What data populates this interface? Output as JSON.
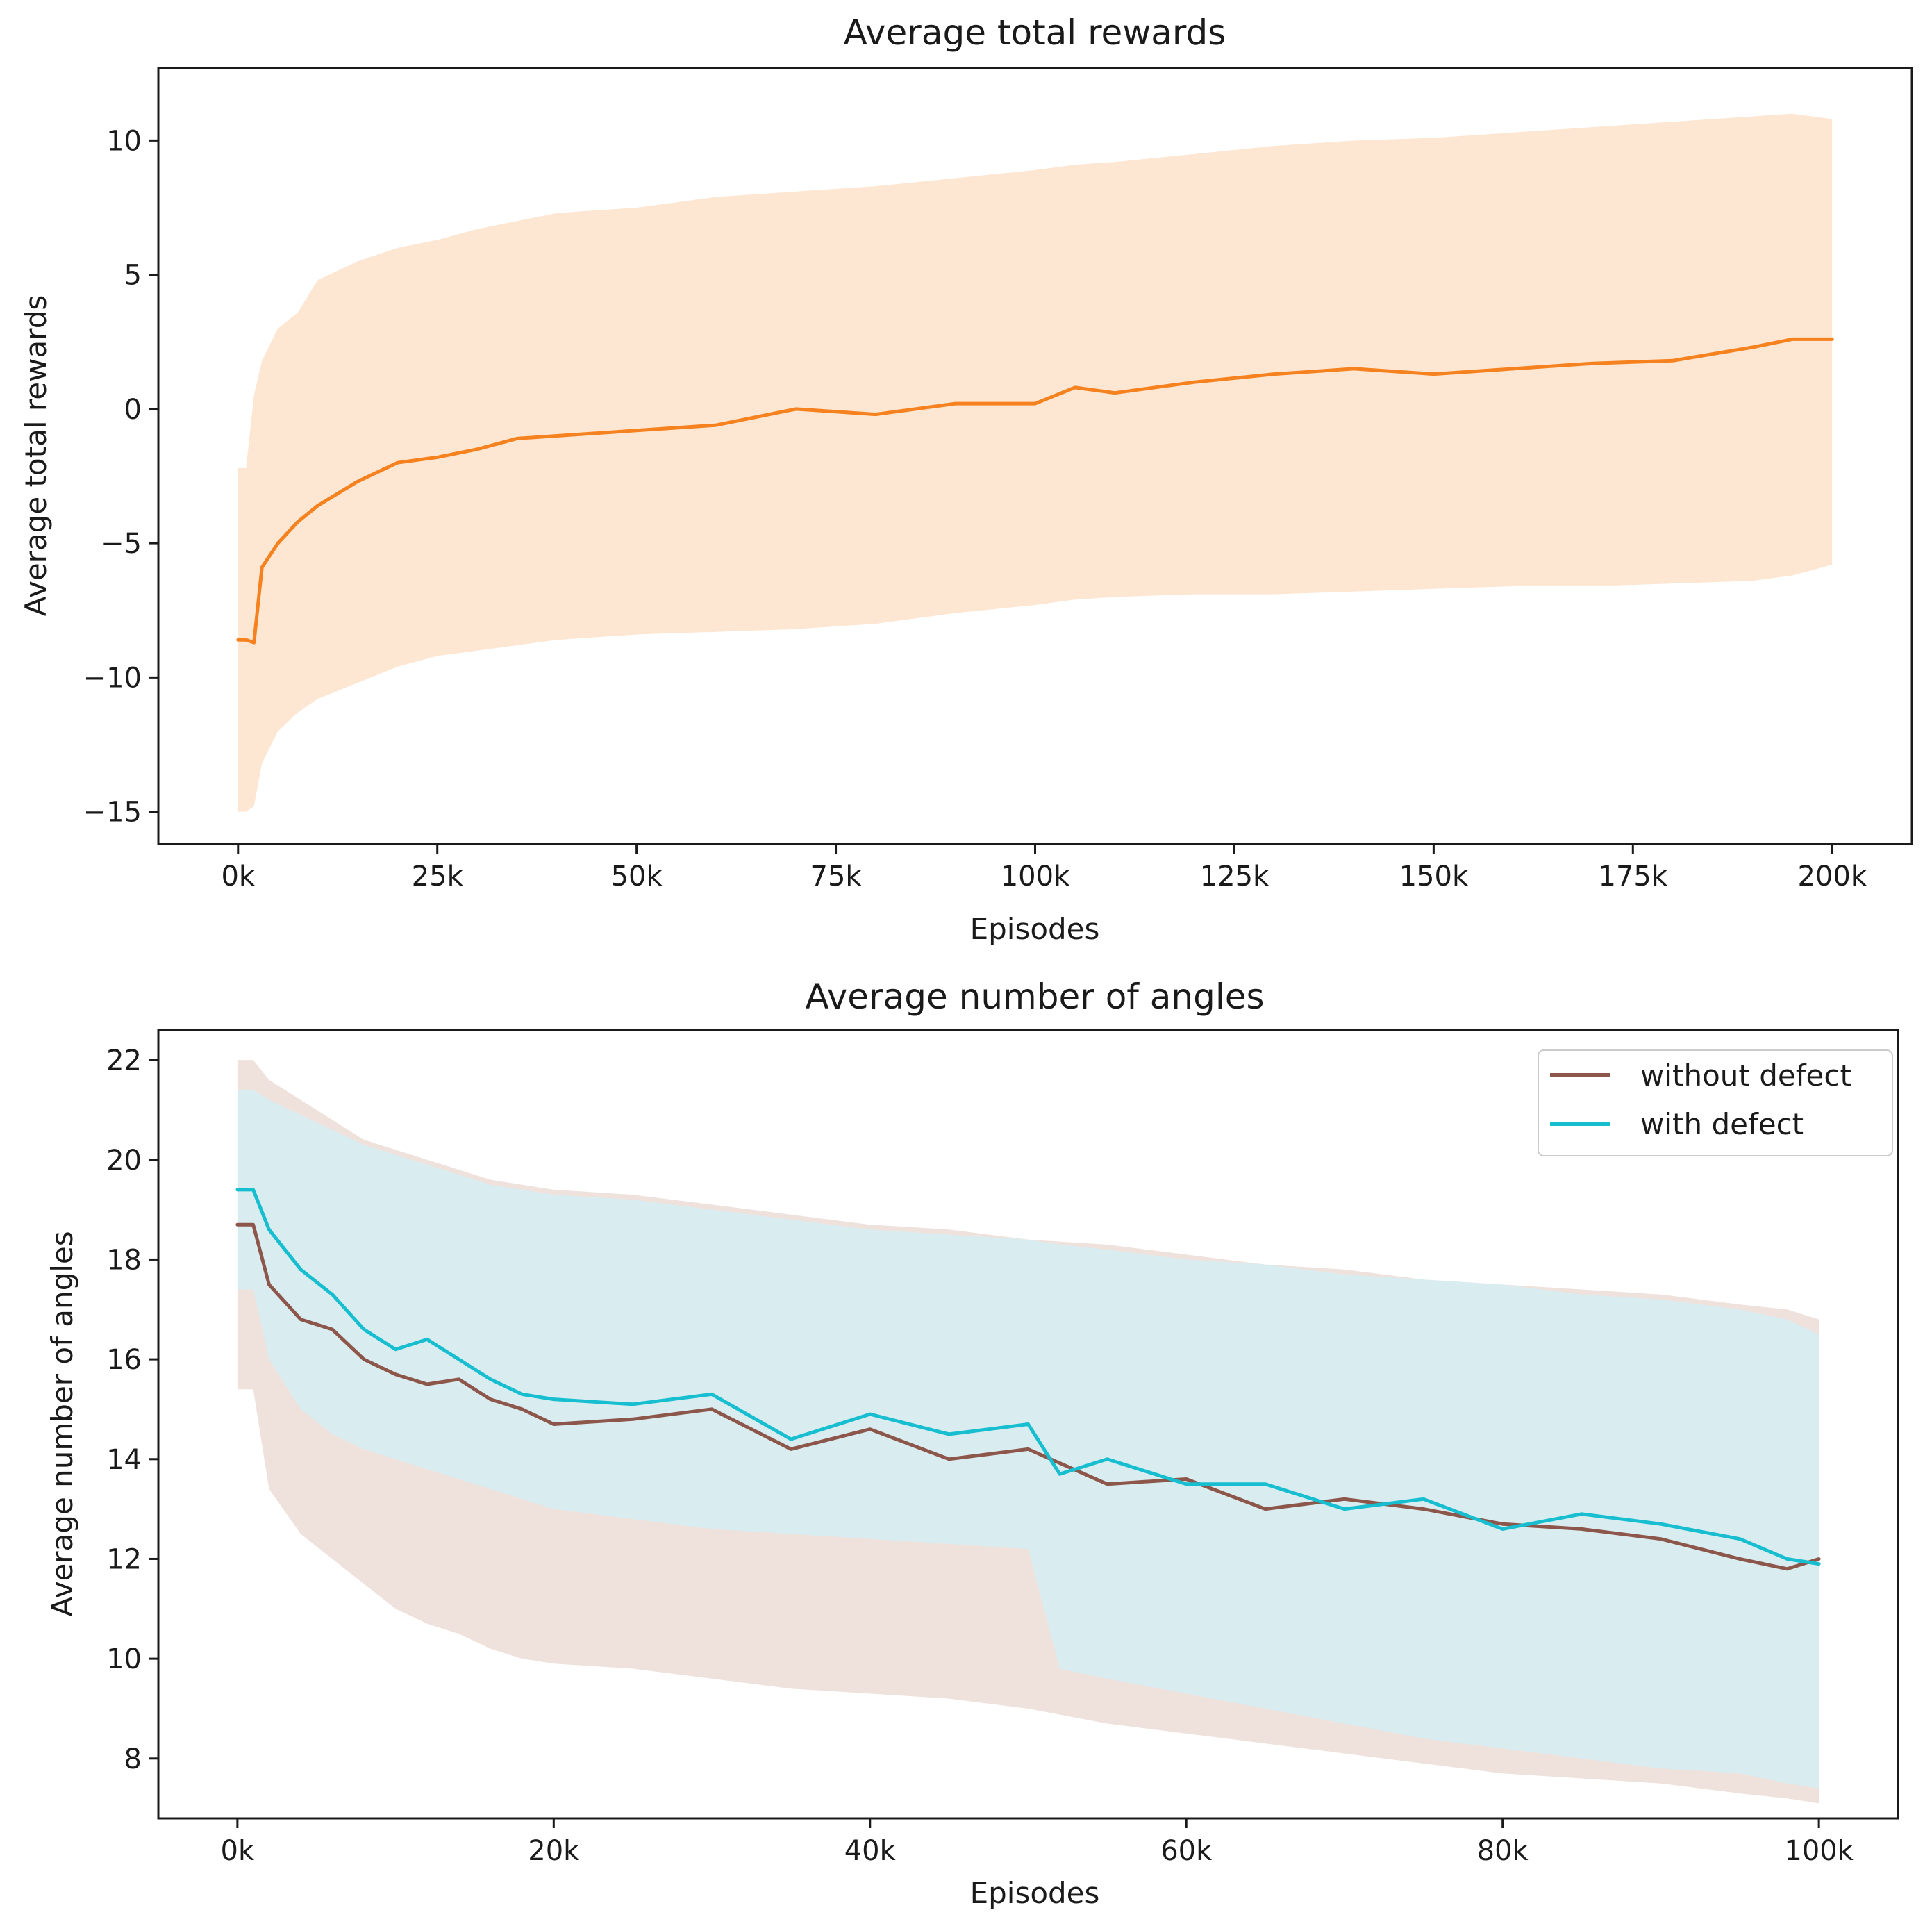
{
  "chart_data": [
    {
      "type": "line",
      "title": "Average total rewards",
      "xlabel": "Episodes",
      "ylabel": "Average total rewards",
      "xlim": [
        -10000,
        210000
      ],
      "ylim": [
        -16.2,
        12.7
      ],
      "xticks": [
        0,
        25000,
        50000,
        75000,
        100000,
        125000,
        150000,
        175000,
        200000
      ],
      "xtick_labels": [
        "0k",
        "25k",
        "50k",
        "75k",
        "100k",
        "125k",
        "150k",
        "175k",
        "200k"
      ],
      "yticks": [
        -15,
        -10,
        -5,
        0,
        5,
        10
      ],
      "ytick_labels": [
        "−15",
        "−10",
        "−5",
        "0",
        "5",
        "10"
      ],
      "grid": false,
      "series": [
        {
          "name": "Average total rewards",
          "color": "#f5821f",
          "band_color": "#fde6d2",
          "x": [
            0,
            1000,
            2000,
            3000,
            5000,
            7500,
            10000,
            15000,
            20000,
            25000,
            30000,
            35000,
            40000,
            50000,
            60000,
            70000,
            80000,
            90000,
            100000,
            105000,
            110000,
            120000,
            130000,
            140000,
            150000,
            160000,
            170000,
            180000,
            190000,
            195000,
            200000
          ],
          "y": [
            -8.6,
            -8.6,
            -8.7,
            -5.9,
            -5.0,
            -4.2,
            -3.6,
            -2.7,
            -2.0,
            -1.8,
            -1.5,
            -1.1,
            -1.0,
            -0.8,
            -0.6,
            0.0,
            -0.2,
            0.2,
            0.2,
            0.8,
            0.6,
            1.0,
            1.3,
            1.5,
            1.3,
            1.5,
            1.7,
            1.8,
            2.3,
            2.6,
            2.6
          ],
          "upper": [
            -2.2,
            -2.2,
            0.5,
            1.8,
            3.0,
            3.6,
            4.8,
            5.5,
            6.0,
            6.3,
            6.7,
            7.0,
            7.3,
            7.5,
            7.9,
            8.1,
            8.3,
            8.6,
            8.9,
            9.1,
            9.2,
            9.5,
            9.8,
            10.0,
            10.1,
            10.3,
            10.5,
            10.7,
            10.9,
            11.0,
            10.8
          ],
          "lower": [
            -15.0,
            -15.0,
            -14.8,
            -13.2,
            -12.0,
            -11.3,
            -10.8,
            -10.2,
            -9.6,
            -9.2,
            -9.0,
            -8.8,
            -8.6,
            -8.4,
            -8.3,
            -8.2,
            -8.0,
            -7.6,
            -7.3,
            -7.1,
            -7.0,
            -6.9,
            -6.9,
            -6.8,
            -6.7,
            -6.6,
            -6.6,
            -6.5,
            -6.4,
            -6.2,
            -5.8
          ]
        }
      ]
    },
    {
      "type": "line",
      "title": "Average number of angles",
      "xlabel": "Episodes",
      "ylabel": "Average number of angles",
      "xlim": [
        -5000,
        105000
      ],
      "ylim": [
        6.8,
        22.6
      ],
      "xticks": [
        0,
        20000,
        40000,
        60000,
        80000,
        100000
      ],
      "xtick_labels": [
        "0k",
        "20k",
        "40k",
        "60k",
        "80k",
        "100k"
      ],
      "yticks": [
        8,
        10,
        12,
        14,
        16,
        18,
        20,
        22
      ],
      "ytick_labels": [
        "8",
        "10",
        "12",
        "14",
        "16",
        "18",
        "20",
        "22"
      ],
      "grid": false,
      "legend": {
        "position": "top-right"
      },
      "series": [
        {
          "name": "without defect",
          "color": "#8c564b",
          "band_color": "#ead8d2",
          "x": [
            0,
            1000,
            2000,
            4000,
            6000,
            8000,
            10000,
            12000,
            14000,
            16000,
            18000,
            20000,
            25000,
            30000,
            35000,
            40000,
            45000,
            50000,
            55000,
            60000,
            65000,
            70000,
            75000,
            80000,
            85000,
            90000,
            95000,
            98000,
            100000
          ],
          "y": [
            18.7,
            18.7,
            17.5,
            16.8,
            16.6,
            16.0,
            15.7,
            15.5,
            15.6,
            15.2,
            15.0,
            14.7,
            14.8,
            15.0,
            14.2,
            14.6,
            14.0,
            14.2,
            13.5,
            13.6,
            13.0,
            13.2,
            13.0,
            12.7,
            12.6,
            12.4,
            12.0,
            11.8,
            12.0
          ],
          "upper": [
            22.0,
            22.0,
            21.6,
            21.2,
            20.8,
            20.4,
            20.2,
            20.0,
            19.8,
            19.6,
            19.5,
            19.4,
            19.3,
            19.1,
            18.9,
            18.7,
            18.6,
            18.4,
            18.3,
            18.1,
            17.9,
            17.8,
            17.6,
            17.5,
            17.4,
            17.3,
            17.1,
            17.0,
            16.8
          ],
          "lower": [
            15.4,
            15.4,
            13.4,
            12.5,
            12.0,
            11.5,
            11.0,
            10.7,
            10.5,
            10.2,
            10.0,
            9.9,
            9.8,
            9.6,
            9.4,
            9.3,
            9.2,
            9.0,
            8.7,
            8.5,
            8.3,
            8.1,
            7.9,
            7.7,
            7.6,
            7.5,
            7.3,
            7.2,
            7.1
          ]
        },
        {
          "name": "with defect",
          "color": "#17becf",
          "band_color": "#d1eff6",
          "x": [
            0,
            1000,
            2000,
            4000,
            6000,
            8000,
            10000,
            12000,
            14000,
            16000,
            18000,
            20000,
            25000,
            30000,
            35000,
            40000,
            45000,
            50000,
            52000,
            55000,
            60000,
            65000,
            70000,
            75000,
            80000,
            85000,
            90000,
            95000,
            98000,
            100000
          ],
          "y": [
            19.4,
            19.4,
            18.6,
            17.8,
            17.3,
            16.6,
            16.2,
            16.4,
            16.0,
            15.6,
            15.3,
            15.2,
            15.1,
            15.3,
            14.4,
            14.9,
            14.5,
            14.7,
            13.7,
            14.0,
            13.5,
            13.5,
            13.0,
            13.2,
            12.6,
            12.9,
            12.7,
            12.4,
            12.0,
            11.9
          ],
          "upper": [
            21.4,
            21.4,
            21.2,
            20.9,
            20.6,
            20.3,
            20.1,
            19.9,
            19.7,
            19.5,
            19.4,
            19.3,
            19.2,
            19.0,
            18.8,
            18.6,
            18.5,
            18.4,
            18.3,
            18.2,
            18.0,
            17.9,
            17.7,
            17.6,
            17.5,
            17.3,
            17.2,
            17.0,
            16.8,
            16.5
          ],
          "lower": [
            17.4,
            17.4,
            16.0,
            15.0,
            14.5,
            14.2,
            14.0,
            13.8,
            13.6,
            13.4,
            13.2,
            13.0,
            12.8,
            12.6,
            12.5,
            12.4,
            12.3,
            12.2,
            9.8,
            9.6,
            9.3,
            9.0,
            8.7,
            8.4,
            8.2,
            8.0,
            7.8,
            7.7,
            7.5,
            7.4
          ]
        }
      ]
    }
  ]
}
